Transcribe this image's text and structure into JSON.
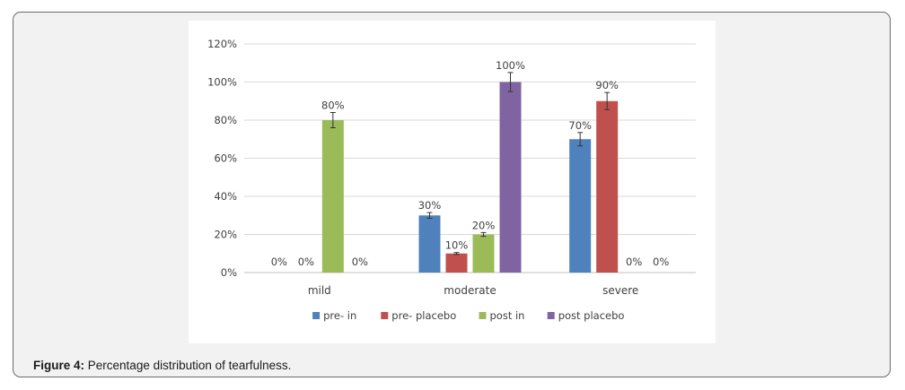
{
  "figure": {
    "label": "Figure 4:",
    "caption": "Percentage distribution of tearfulness."
  },
  "chart_data": {
    "type": "bar",
    "title": "",
    "xlabel": "",
    "ylabel": "",
    "ylim": [
      0,
      120
    ],
    "yticks": [
      "0%",
      "20%",
      "40%",
      "60%",
      "80%",
      "100%",
      "120%"
    ],
    "grid": true,
    "legend_position": "bottom",
    "categories": [
      "mild",
      "moderate",
      "severe"
    ],
    "series": [
      {
        "name": "pre- in",
        "color": "#4f81bd",
        "values": [
          0,
          30,
          70
        ],
        "labels": [
          "0%",
          "30%",
          "70%"
        ],
        "errors": [
          0,
          1.5,
          3.5
        ]
      },
      {
        "name": "pre- placebo",
        "color": "#c0504d",
        "values": [
          0,
          10,
          90
        ],
        "labels": [
          "0%",
          "10%",
          "90%"
        ],
        "errors": [
          0,
          0.5,
          4.5
        ]
      },
      {
        "name": "post in",
        "color": "#9bbb59",
        "values": [
          80,
          20,
          0
        ],
        "labels": [
          "80%",
          "20%",
          "0%"
        ],
        "errors": [
          4,
          1,
          0
        ]
      },
      {
        "name": "post placebo",
        "color": "#8064a2",
        "values": [
          0,
          100,
          0
        ],
        "labels": [
          "0%",
          "100%",
          "0%"
        ],
        "errors": [
          0,
          5,
          0
        ]
      }
    ]
  }
}
